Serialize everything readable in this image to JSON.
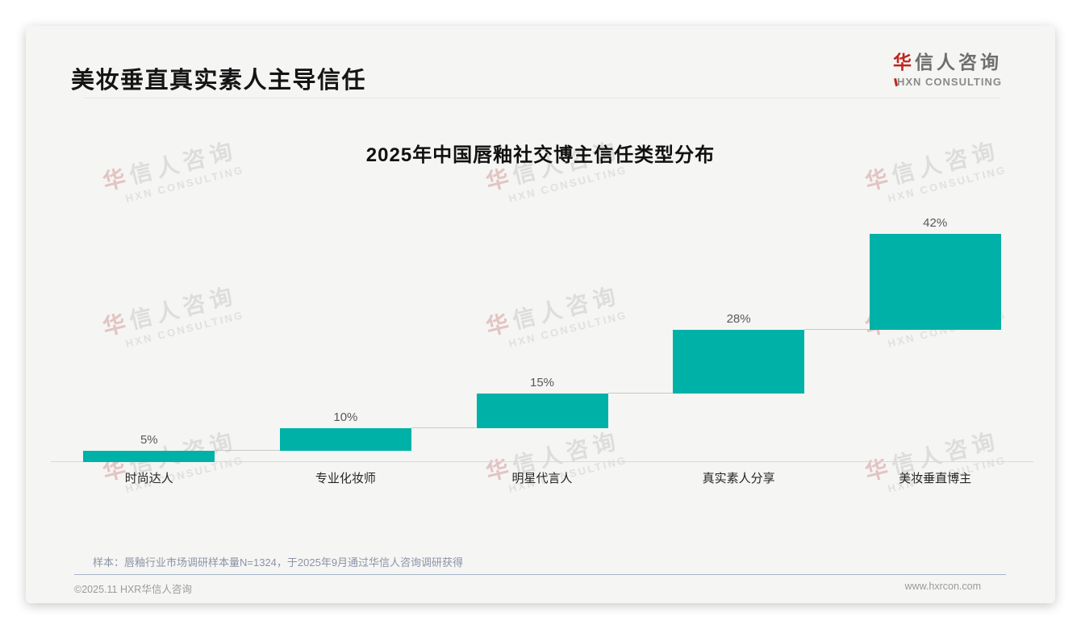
{
  "page": {
    "title": "美妆垂直真实素人主导信任",
    "logo": {
      "cn_first": "华",
      "cn_rest": "信人咨询",
      "en": "HXN CONSULTING",
      "red": "#c0251c"
    },
    "sample_note": "样本：唇釉行业市场调研样本量N=1324，于2025年9月通过华信人咨询调研获得",
    "footer": {
      "left": "©2025.11 HXR华信人咨询",
      "right": "www.hxrcon.com"
    }
  },
  "watermark": {
    "first": "华",
    "rest": "信人咨询",
    "line2": "HXN CONSULTING"
  },
  "chart_data": {
    "type": "bar",
    "subtype": "waterfall",
    "title": "2025年中国唇釉社交博主信任类型分布",
    "categories": [
      "时尚达人",
      "专业化妆师",
      "明星代言人",
      "真实素人分享",
      "美妆垂直博主"
    ],
    "values": [
      5,
      10,
      15,
      28,
      42
    ],
    "value_labels": [
      "5%",
      "10%",
      "15%",
      "28%",
      "42%"
    ],
    "cumulative": [
      5,
      15,
      30,
      58,
      100
    ],
    "unit": "%",
    "xlabel": "",
    "ylabel": "",
    "ylim": [
      0,
      100
    ],
    "grid": false,
    "legend": false,
    "data_label_position": "top",
    "bar_color": "#00b1a8",
    "connector_color": "#c9c9c9",
    "axis_line_color": "#d9d9d9"
  }
}
